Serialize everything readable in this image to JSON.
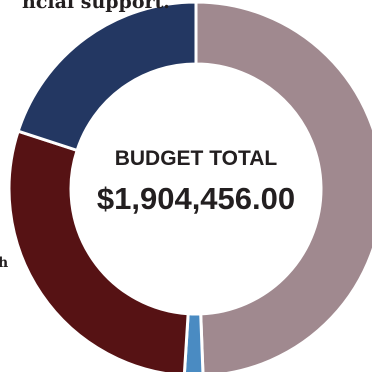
{
  "top_text": "ncial support.",
  "side_fragment_top": "h",
  "side_fragment_bottom": "",
  "chart_data": {
    "type": "pie",
    "style": "donut",
    "center_label": "BUDGET TOTAL",
    "center_value": "$1,904,456.00",
    "slices": [
      {
        "value": 49.4,
        "color": "#a0898f"
      },
      {
        "value": 1.6,
        "color": "#4a8bc2"
      },
      {
        "value": 29.0,
        "color": "#561214"
      },
      {
        "value": 20.0,
        "color": "#233762"
      }
    ],
    "start_angle_deg": 0,
    "direction": "clockwise"
  }
}
